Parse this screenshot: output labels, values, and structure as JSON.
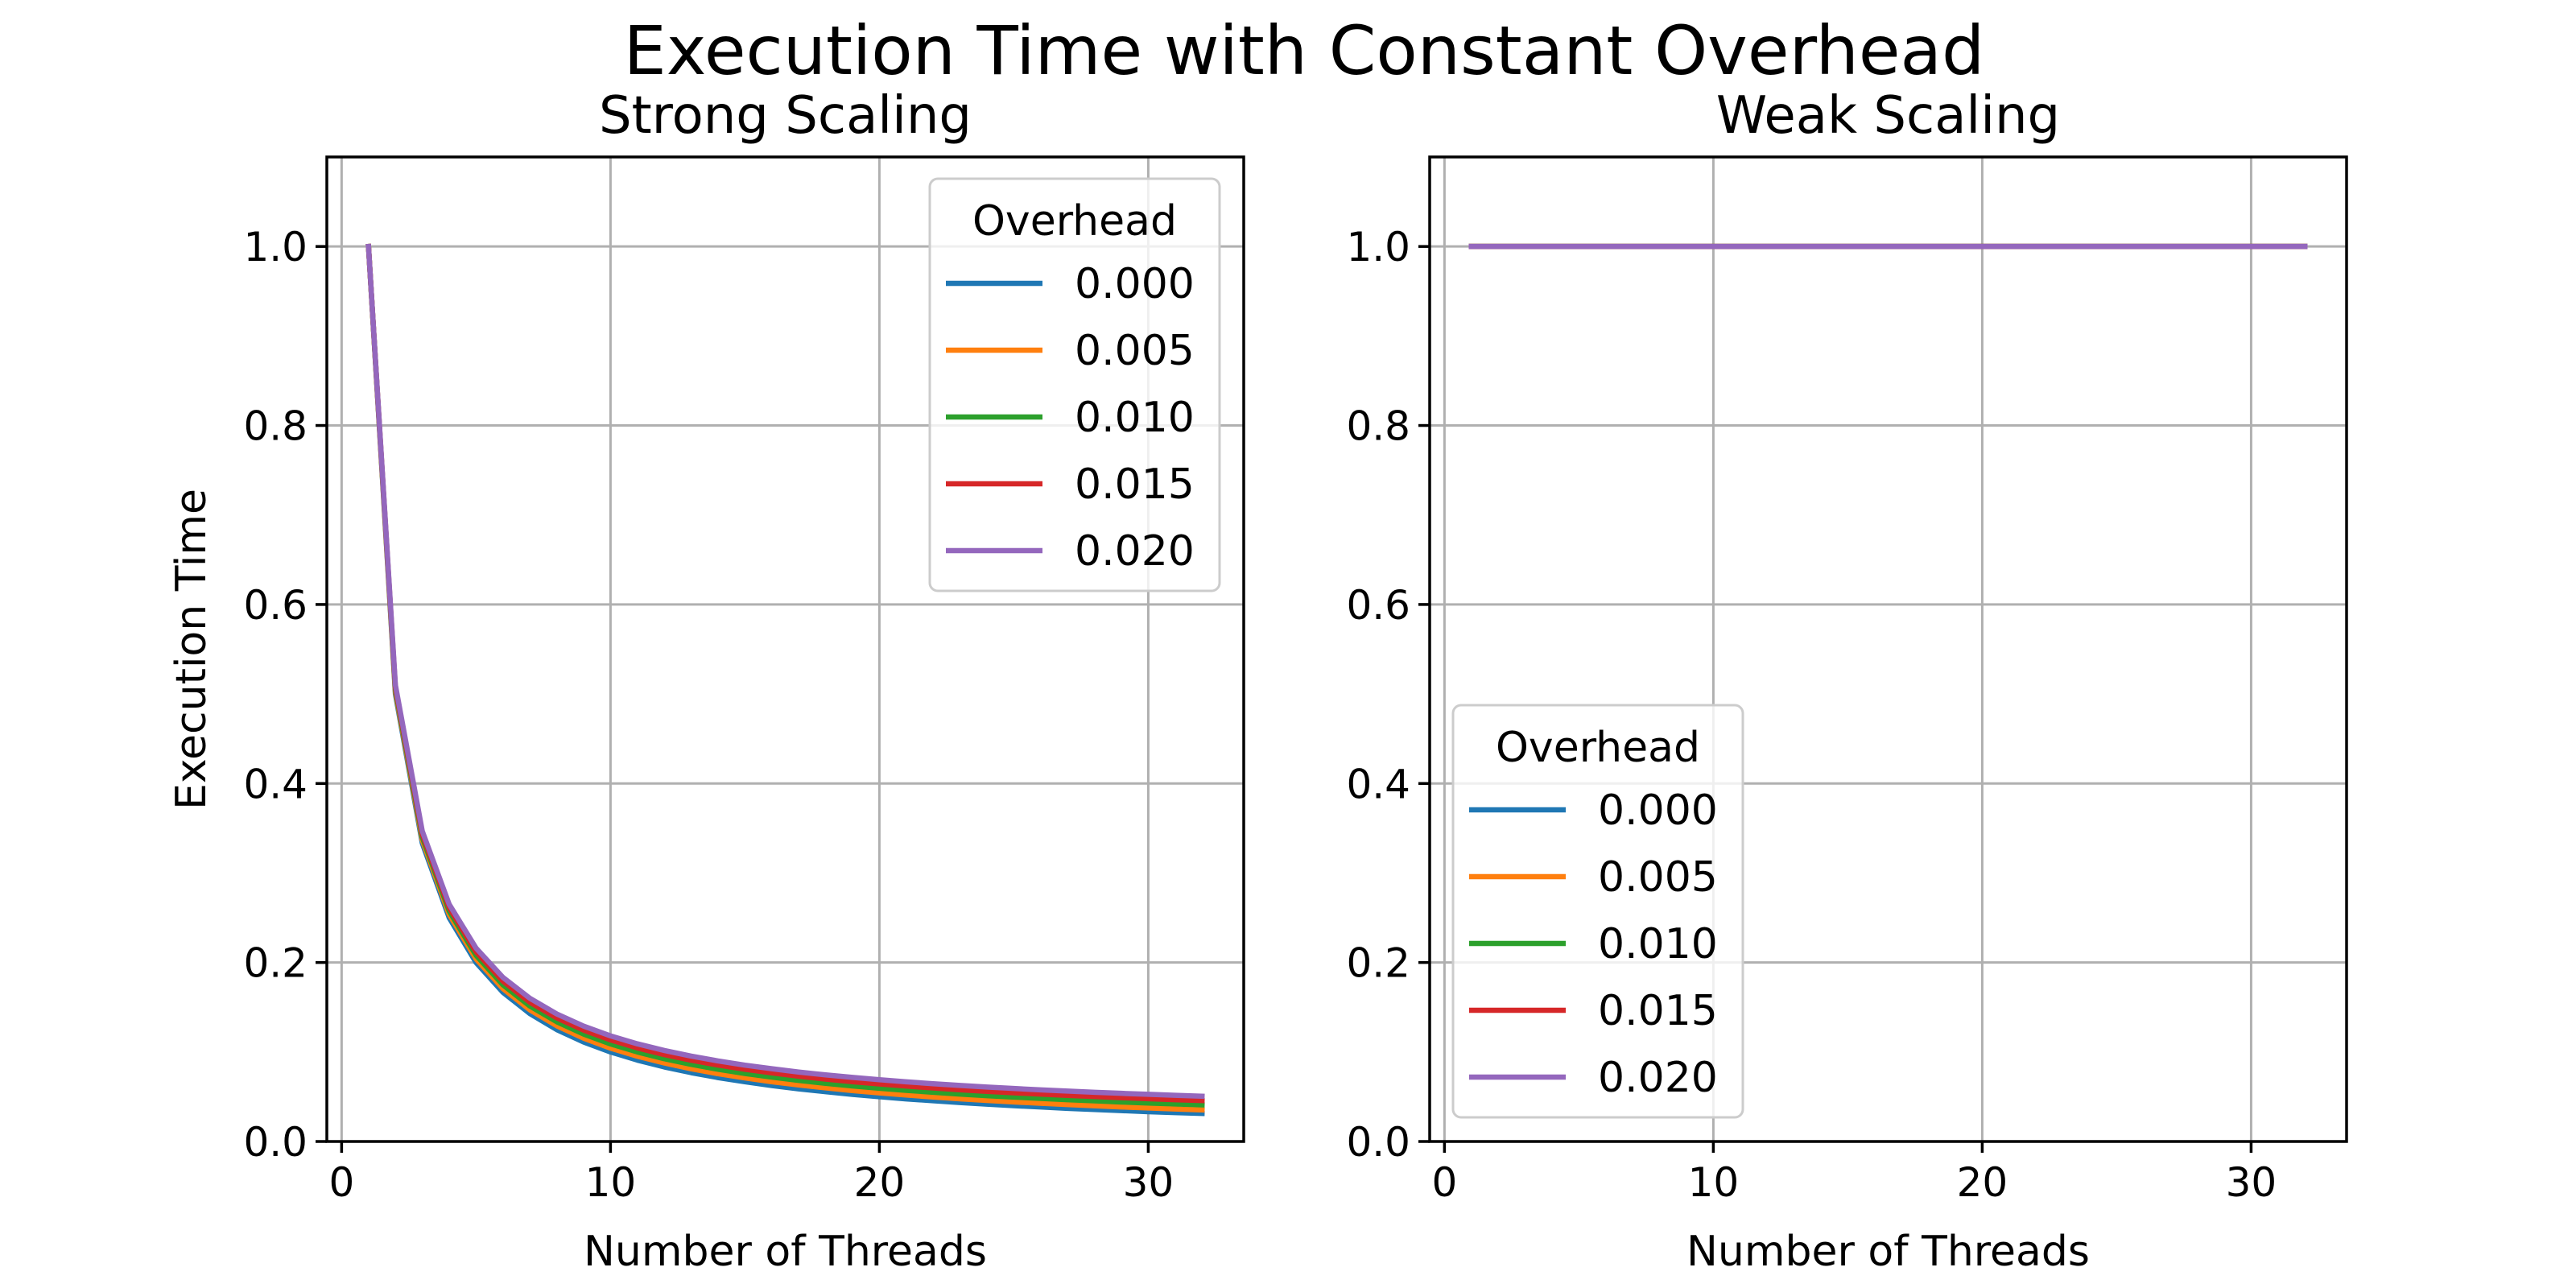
{
  "figure": {
    "title": "Execution Time with Constant Overhead"
  },
  "colors": {
    "0.000": "#1f77b4",
    "0.005": "#ff7f0e",
    "0.010": "#2ca02c",
    "0.015": "#d62728",
    "0.020": "#9467bd"
  },
  "chart_data": [
    {
      "type": "line",
      "title": "Strong Scaling",
      "xlabel": "Number of Threads",
      "ylabel": "Execution Time",
      "xlim": [
        -0.55,
        33.55
      ],
      "ylim": [
        0.0,
        1.1
      ],
      "xticks": [
        0,
        10,
        20,
        30
      ],
      "yticks": [
        0.0,
        0.2,
        0.4,
        0.6,
        0.8,
        1.0
      ],
      "xtick_labels": [
        "0",
        "10",
        "20",
        "30"
      ],
      "ytick_labels": [
        "0.0",
        "0.2",
        "0.4",
        "0.6",
        "0.8",
        "1.0"
      ],
      "grid": true,
      "legend": {
        "title": "Overhead",
        "placement": "top-right"
      },
      "x": [
        1,
        2,
        3,
        4,
        5,
        6,
        7,
        8,
        9,
        10,
        11,
        12,
        13,
        14,
        15,
        16,
        17,
        18,
        19,
        20,
        21,
        22,
        23,
        24,
        25,
        26,
        27,
        28,
        29,
        30,
        31,
        32
      ],
      "series": [
        {
          "name": "0.000",
          "values": [
            1.0,
            0.5,
            0.3333,
            0.25,
            0.2,
            0.1667,
            0.1429,
            0.125,
            0.1111,
            0.1,
            0.0909,
            0.0833,
            0.0769,
            0.0714,
            0.0667,
            0.0625,
            0.0588,
            0.0556,
            0.0526,
            0.05,
            0.0476,
            0.0455,
            0.0435,
            0.0417,
            0.04,
            0.0385,
            0.037,
            0.0357,
            0.0345,
            0.0333,
            0.0323,
            0.0313
          ]
        },
        {
          "name": "0.005",
          "values": [
            1.0,
            0.5025,
            0.3367,
            0.2538,
            0.204,
            0.1708,
            0.1471,
            0.1293,
            0.1154,
            0.1043,
            0.0952,
            0.0877,
            0.0812,
            0.0757,
            0.071,
            0.0668,
            0.0632,
            0.0599,
            0.0569,
            0.0543,
            0.0519,
            0.0497,
            0.0477,
            0.0459,
            0.0442,
            0.0427,
            0.0412,
            0.0399,
            0.0386,
            0.0374,
            0.0363,
            0.0353
          ]
        },
        {
          "name": "0.010",
          "values": [
            1.0,
            0.505,
            0.34,
            0.2575,
            0.208,
            0.175,
            0.1514,
            0.1338,
            0.12,
            0.109,
            0.1,
            0.0925,
            0.0862,
            0.0807,
            0.076,
            0.0719,
            0.0682,
            0.065,
            0.0621,
            0.0595,
            0.0571,
            0.055,
            0.053,
            0.0512,
            0.0496,
            0.0481,
            0.0467,
            0.0454,
            0.0441,
            0.043,
            0.0419,
            0.0409
          ]
        },
        {
          "name": "0.015",
          "values": [
            1.0,
            0.5075,
            0.3433,
            0.2613,
            0.212,
            0.1792,
            0.1557,
            0.1381,
            0.1244,
            0.1135,
            0.1045,
            0.0971,
            0.0908,
            0.0854,
            0.0807,
            0.0766,
            0.073,
            0.0697,
            0.0668,
            0.0643,
            0.0619,
            0.0598,
            0.0578,
            0.056,
            0.0544,
            0.0529,
            0.0515,
            0.0502,
            0.0489,
            0.0478,
            0.0467,
            0.0457
          ]
        },
        {
          "name": "0.020",
          "values": [
            1.0,
            0.51,
            0.3467,
            0.265,
            0.216,
            0.1833,
            0.16,
            0.1425,
            0.1289,
            0.118,
            0.1091,
            0.1017,
            0.0954,
            0.09,
            0.0853,
            0.0813,
            0.0776,
            0.0744,
            0.0716,
            0.069,
            0.0667,
            0.0645,
            0.0626,
            0.0608,
            0.0592,
            0.0577,
            0.0563,
            0.055,
            0.0538,
            0.0527,
            0.0516,
            0.0506
          ]
        }
      ]
    },
    {
      "type": "line",
      "title": "Weak Scaling",
      "xlabel": "Number of Threads",
      "ylabel": "",
      "xlim": [
        -0.55,
        33.55
      ],
      "ylim": [
        0.0,
        1.1
      ],
      "xticks": [
        0,
        10,
        20,
        30
      ],
      "yticks": [
        0.0,
        0.2,
        0.4,
        0.6,
        0.8,
        1.0
      ],
      "xtick_labels": [
        "0",
        "10",
        "20",
        "30"
      ],
      "ytick_labels": [
        "0.0",
        "0.2",
        "0.4",
        "0.6",
        "0.8",
        "1.0"
      ],
      "grid": true,
      "legend": {
        "title": "Overhead",
        "placement": "bottom-left"
      },
      "x": [
        1,
        2,
        3,
        4,
        5,
        6,
        7,
        8,
        9,
        10,
        11,
        12,
        13,
        14,
        15,
        16,
        17,
        18,
        19,
        20,
        21,
        22,
        23,
        24,
        25,
        26,
        27,
        28,
        29,
        30,
        31,
        32
      ],
      "series": [
        {
          "name": "0.000",
          "values": [
            1.0,
            1.0,
            1.0,
            1.0,
            1.0,
            1.0,
            1.0,
            1.0,
            1.0,
            1.0,
            1.0,
            1.0,
            1.0,
            1.0,
            1.0,
            1.0,
            1.0,
            1.0,
            1.0,
            1.0,
            1.0,
            1.0,
            1.0,
            1.0,
            1.0,
            1.0,
            1.0,
            1.0,
            1.0,
            1.0,
            1.0,
            1.0
          ]
        },
        {
          "name": "0.005",
          "values": [
            1.0,
            1.0,
            1.0,
            1.0,
            1.0,
            1.0,
            1.0,
            1.0,
            1.0,
            1.0,
            1.0,
            1.0,
            1.0,
            1.0,
            1.0,
            1.0,
            1.0,
            1.0,
            1.0,
            1.0,
            1.0,
            1.0,
            1.0,
            1.0,
            1.0,
            1.0,
            1.0,
            1.0,
            1.0,
            1.0,
            1.0,
            1.0
          ]
        },
        {
          "name": "0.010",
          "values": [
            1.0,
            1.0,
            1.0,
            1.0,
            1.0,
            1.0,
            1.0,
            1.0,
            1.0,
            1.0,
            1.0,
            1.0,
            1.0,
            1.0,
            1.0,
            1.0,
            1.0,
            1.0,
            1.0,
            1.0,
            1.0,
            1.0,
            1.0,
            1.0,
            1.0,
            1.0,
            1.0,
            1.0,
            1.0,
            1.0,
            1.0,
            1.0
          ]
        },
        {
          "name": "0.015",
          "values": [
            1.0,
            1.0,
            1.0,
            1.0,
            1.0,
            1.0,
            1.0,
            1.0,
            1.0,
            1.0,
            1.0,
            1.0,
            1.0,
            1.0,
            1.0,
            1.0,
            1.0,
            1.0,
            1.0,
            1.0,
            1.0,
            1.0,
            1.0,
            1.0,
            1.0,
            1.0,
            1.0,
            1.0,
            1.0,
            1.0,
            1.0,
            1.0
          ]
        },
        {
          "name": "0.020",
          "values": [
            1.0,
            1.0,
            1.0,
            1.0,
            1.0,
            1.0,
            1.0,
            1.0,
            1.0,
            1.0,
            1.0,
            1.0,
            1.0,
            1.0,
            1.0,
            1.0,
            1.0,
            1.0,
            1.0,
            1.0,
            1.0,
            1.0,
            1.0,
            1.0,
            1.0,
            1.0,
            1.0,
            1.0,
            1.0,
            1.0,
            1.0,
            1.0
          ]
        }
      ]
    }
  ]
}
